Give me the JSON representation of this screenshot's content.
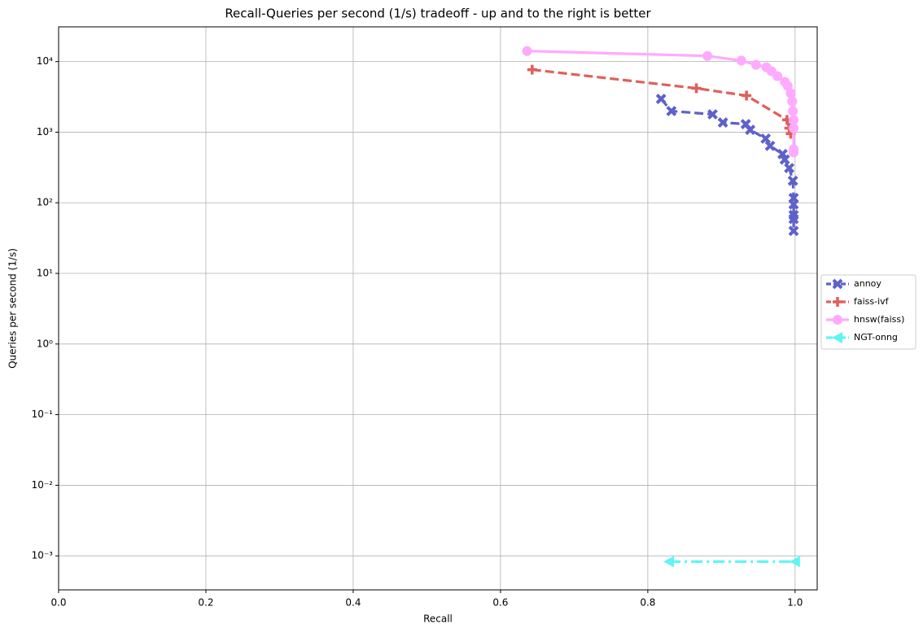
{
  "chart_data": {
    "type": "line",
    "title": "Recall-Queries per second (1/s) tradeoff - up and to the right is better",
    "x_label": "Recall",
    "y_label": "Queries per second (1/s)",
    "xlim": [
      0,
      1.03
    ],
    "ylim": [
      0.00033,
      31000
    ],
    "log_y": true,
    "grid": true,
    "legend": "right",
    "xticks": [
      {
        "value": 0,
        "label": "0.0"
      },
      0.2,
      0.4,
      0.6,
      0.8,
      {
        "value": 1,
        "label": "1.0"
      }
    ],
    "yticks": [
      {
        "value": 0.001,
        "label": "10⁻³"
      },
      {
        "value": 0.01,
        "label": "10⁻²"
      },
      {
        "value": 0.1,
        "label": "10⁻¹"
      },
      {
        "value": 1,
        "label": "10⁰"
      },
      {
        "value": 10,
        "label": "10¹"
      },
      {
        "value": 100,
        "label": "10²"
      },
      {
        "value": 1000,
        "label": "10³"
      },
      {
        "value": 10000,
        "label": "10⁴"
      }
    ],
    "series": [
      {
        "name": "annoy",
        "color": "#5e61c9",
        "marker": "x",
        "linestyle": "dashed",
        "x": [
          0.818,
          0.832,
          0.888,
          0.902,
          0.933,
          0.939,
          0.96,
          0.966,
          0.983,
          0.986,
          0.992,
          0.997,
          0.998,
          0.998,
          0.998,
          0.998,
          0.998
        ],
        "values": [
          2960,
          1990,
          1790,
          1370,
          1300,
          1080,
          810,
          640,
          490,
          410,
          310,
          205,
          117,
          95,
          67,
          59,
          40
        ]
      },
      {
        "name": "faiss-ivf",
        "color": "#e0605a",
        "marker": "plus",
        "linestyle": "dashed",
        "x": [
          0.643,
          0.866,
          0.934,
          0.989,
          0.992,
          0.994
        ],
        "values": [
          7670,
          4180,
          3290,
          1490,
          1140,
          950
        ]
      },
      {
        "name": "hnsw(faiss)",
        "color": "#ffaaff",
        "marker": "circle",
        "linestyle": "solid",
        "x": [
          0.636,
          0.881,
          0.927,
          0.947,
          0.961,
          0.968,
          0.976,
          0.986,
          0.99,
          0.994,
          0.996,
          0.997,
          0.998,
          0.998,
          0.998,
          0.998
        ],
        "values": [
          14100,
          12000,
          10300,
          8990,
          8310,
          7280,
          6210,
          5160,
          4520,
          3560,
          2730,
          1990,
          1490,
          1140,
          574,
          516
        ]
      },
      {
        "name": "NGT-onng",
        "color": "#5ff5f5",
        "marker": "triangle-left",
        "linestyle": "dashdot",
        "x": [
          0.829,
          1.0
        ],
        "values": [
          0.00083,
          0.00083
        ]
      }
    ]
  }
}
